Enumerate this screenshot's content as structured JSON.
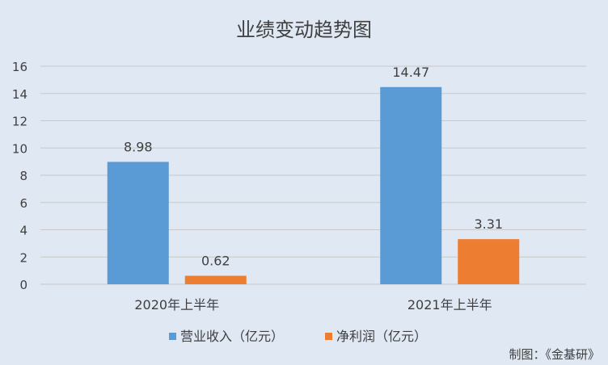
{
  "chart_data": {
    "type": "bar",
    "title": "业绩变动趋势图",
    "categories": [
      "2020年上半年",
      "2021年上半年"
    ],
    "series": [
      {
        "name": "营业收入（亿元）",
        "values": [
          8.98,
          14.47
        ],
        "color": "#5b9bd5"
      },
      {
        "name": "净利润（亿元）",
        "values": [
          0.62,
          3.31
        ],
        "color": "#ed7d31"
      }
    ],
    "ylim": [
      0,
      16
    ],
    "yticks": [
      0,
      2,
      4,
      6,
      8,
      10,
      12,
      14,
      16
    ],
    "grid": true,
    "legend_position": "bottom"
  },
  "source": "制图：《金基研》",
  "colors": {
    "background": "#dfe8f3",
    "grid": "#c9c9c9",
    "text": "#404040"
  }
}
